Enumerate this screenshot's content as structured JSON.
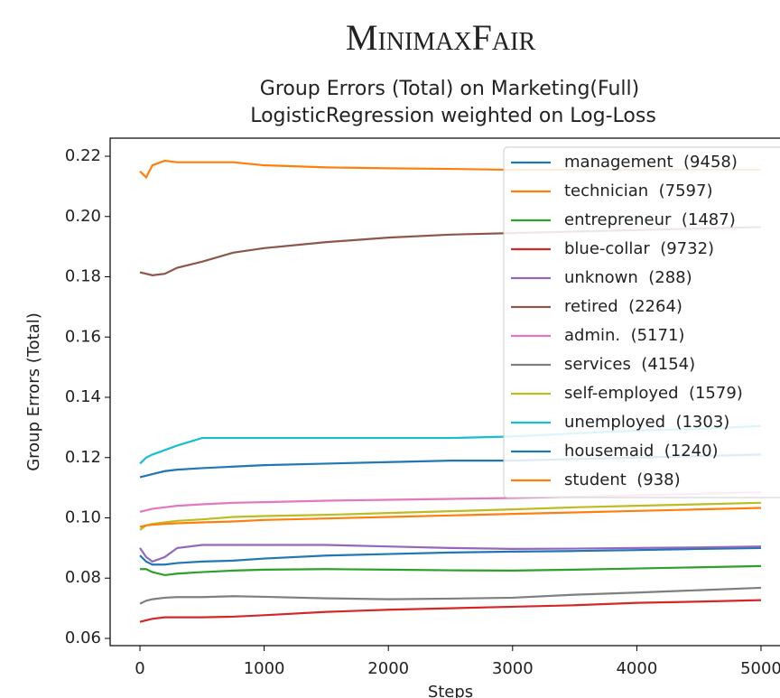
{
  "chart_data": {
    "type": "line",
    "header": "MinimaxFair",
    "title": "Group Errors (Total) on Marketing(Full)",
    "subtitle": "LogisticRegression weighted on Log-Loss",
    "xlabel": "Steps",
    "ylabel": "Group Errors (Total)",
    "x": [
      0,
      50,
      100,
      200,
      300,
      500,
      750,
      1000,
      1500,
      2000,
      2500,
      3000,
      3500,
      4000,
      4500,
      5000
    ],
    "xlim": [
      -240,
      5240
    ],
    "xticks": [
      0,
      1000,
      2000,
      3000,
      4000,
      5000
    ],
    "ylim": [
      0.0576,
      0.226
    ],
    "yticks": [
      0.06,
      0.08,
      {
        "value": 0.1,
        "label": "0.10"
      },
      0.12,
      0.14,
      0.16,
      0.18,
      {
        "value": 0.2,
        "label": "0.20"
      },
      0.22
    ],
    "legend": "upper right",
    "series": [
      {
        "name": "management  (9458)",
        "color": "#1f77b4",
        "values": [
          0.0875,
          0.0855,
          0.0845,
          0.0845,
          0.085,
          0.0855,
          0.0858,
          0.0865,
          0.0875,
          0.088,
          0.0885,
          0.0888,
          0.089,
          0.0893,
          0.0897,
          0.09
        ]
      },
      {
        "name": "technician  (7597)",
        "color": "#ff7f0e",
        "values": [
          0.215,
          0.213,
          0.217,
          0.2185,
          0.218,
          0.218,
          0.218,
          0.217,
          0.2163,
          0.216,
          0.2158,
          0.2155,
          0.2155,
          0.2155,
          0.2155,
          0.2155
        ]
      },
      {
        "name": "entrepreneur  (1487)",
        "color": "#2ca02c",
        "values": [
          0.083,
          0.083,
          0.082,
          0.081,
          0.0815,
          0.082,
          0.0825,
          0.0828,
          0.083,
          0.0828,
          0.0826,
          0.0825,
          0.0828,
          0.0832,
          0.0836,
          0.084
        ]
      },
      {
        "name": "blue-collar  (9732)",
        "color": "#d62728",
        "values": [
          0.0655,
          0.066,
          0.0665,
          0.067,
          0.067,
          0.067,
          0.0672,
          0.0677,
          0.0688,
          0.0695,
          0.07,
          0.0705,
          0.071,
          0.0718,
          0.0722,
          0.0727
        ]
      },
      {
        "name": "unknown  (288)",
        "color": "#9467bd",
        "values": [
          0.09,
          0.087,
          0.0855,
          0.087,
          0.09,
          0.091,
          0.091,
          0.091,
          0.091,
          0.0905,
          0.09,
          0.0897,
          0.0898,
          0.09,
          0.0902,
          0.0905
        ]
      },
      {
        "name": "retired  (2264)",
        "color": "#8c564b",
        "values": [
          0.1815,
          0.181,
          0.1805,
          0.181,
          0.183,
          0.185,
          0.188,
          0.1895,
          0.1915,
          0.193,
          0.194,
          0.1945,
          0.195,
          0.1955,
          0.196,
          0.1965
        ]
      },
      {
        "name": "admin.  (5171)",
        "color": "#e377c2",
        "values": [
          0.102,
          0.1025,
          0.103,
          0.1035,
          0.104,
          0.1045,
          0.105,
          0.1052,
          0.1057,
          0.106,
          0.1063,
          0.1066,
          0.107,
          0.1075,
          0.108,
          0.1085
        ]
      },
      {
        "name": "services  (4154)",
        "color": "#7f7f7f",
        "values": [
          0.0715,
          0.0725,
          0.073,
          0.0735,
          0.0737,
          0.0737,
          0.074,
          0.0738,
          0.0733,
          0.073,
          0.0732,
          0.0735,
          0.0745,
          0.0752,
          0.076,
          0.0768
        ]
      },
      {
        "name": "self-employed  (1579)",
        "color": "#bcbd22",
        "values": [
          0.096,
          0.0975,
          0.098,
          0.0985,
          0.099,
          0.0995,
          0.1003,
          0.1006,
          0.101,
          0.1016,
          0.1022,
          0.1028,
          0.1035,
          0.104,
          0.1045,
          0.105
        ]
      },
      {
        "name": "unemployed  (1303)",
        "color": "#17becf",
        "values": [
          0.118,
          0.12,
          0.121,
          0.1225,
          0.124,
          0.1265,
          0.1265,
          0.1265,
          0.1265,
          0.1265,
          0.1265,
          0.127,
          0.128,
          0.129,
          0.1295,
          0.1305
        ]
      },
      {
        "name": "housemaid  (1240)",
        "color": "#1f77b4",
        "values": [
          0.1135,
          0.114,
          0.1145,
          0.1155,
          0.116,
          0.1165,
          0.117,
          0.1175,
          0.118,
          0.1185,
          0.119,
          0.119,
          0.1195,
          0.12,
          0.1205,
          0.121
        ]
      },
      {
        "name": "student  (938)",
        "color": "#ff7f0e",
        "values": [
          0.097,
          0.0975,
          0.0977,
          0.098,
          0.0982,
          0.0985,
          0.0988,
          0.0993,
          0.0998,
          0.1003,
          0.1008,
          0.1013,
          0.1018,
          0.1023,
          0.1028,
          0.1033
        ]
      }
    ]
  }
}
